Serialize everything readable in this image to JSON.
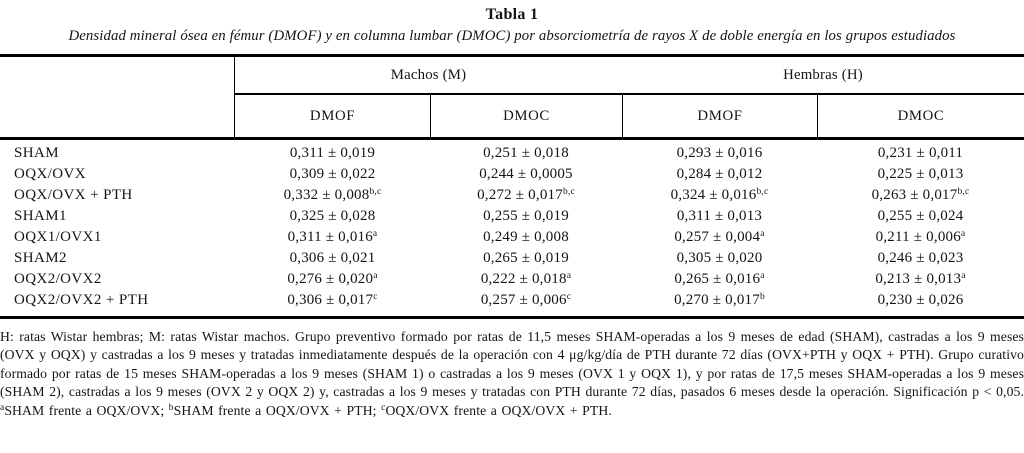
{
  "title": "Tabla 1",
  "subtitle": "Densidad mineral ósea en fémur (DMOF) y en columna lumbar (DMOC) por absorciometría de rayos X de doble energía en los grupos estudiados",
  "table": {
    "group_headers": [
      {
        "label": "Machos (M)"
      },
      {
        "label": "Hembras (H)"
      }
    ],
    "col_headers": [
      "DMOF",
      "DMOC",
      "DMOF",
      "DMOC"
    ],
    "rows": [
      {
        "label": "SHAM",
        "cells": [
          {
            "text": "0,311 ± 0,019",
            "sup": ""
          },
          {
            "text": "0,251 ± 0,018",
            "sup": ""
          },
          {
            "text": "0,293 ± 0,016",
            "sup": ""
          },
          {
            "text": "0,231 ± 0,011",
            "sup": ""
          }
        ]
      },
      {
        "label": "OQX/OVX",
        "cells": [
          {
            "text": "0,309 ± 0,022",
            "sup": ""
          },
          {
            "text": "0,244 ± 0,0005",
            "sup": ""
          },
          {
            "text": "0,284 ± 0,012",
            "sup": ""
          },
          {
            "text": "0,225 ± 0,013",
            "sup": ""
          }
        ]
      },
      {
        "label": "OQX/OVX + PTH",
        "cells": [
          {
            "text": "0,332 ± 0,008",
            "sup": "b,c"
          },
          {
            "text": "0,272 ± 0,017",
            "sup": "b,c"
          },
          {
            "text": "0,324 ± 0,016",
            "sup": "b,c"
          },
          {
            "text": "0,263 ± 0,017",
            "sup": "b,c"
          }
        ]
      },
      {
        "label": "SHAM1",
        "cells": [
          {
            "text": "0,325 ± 0,028",
            "sup": ""
          },
          {
            "text": "0,255 ± 0,019",
            "sup": ""
          },
          {
            "text": "0,311 ± 0,013",
            "sup": ""
          },
          {
            "text": "0,255 ± 0,024",
            "sup": ""
          }
        ]
      },
      {
        "label": "OQX1/OVX1",
        "cells": [
          {
            "text": "0,311 ± 0,016",
            "sup": "a"
          },
          {
            "text": "0,249 ± 0,008",
            "sup": ""
          },
          {
            "text": "0,257 ± 0,004",
            "sup": "a"
          },
          {
            "text": "0,211 ± 0,006",
            "sup": "a"
          }
        ]
      },
      {
        "label": "SHAM2",
        "cells": [
          {
            "text": "0,306 ± 0,021",
            "sup": ""
          },
          {
            "text": "0,265 ± 0,019",
            "sup": ""
          },
          {
            "text": "0,305 ± 0,020",
            "sup": ""
          },
          {
            "text": "0,246 ± 0,023",
            "sup": ""
          }
        ]
      },
      {
        "label": "OQX2/OVX2",
        "cells": [
          {
            "text": "0,276 ± 0,020",
            "sup": "a"
          },
          {
            "text": "0,222 ± 0,018",
            "sup": "a"
          },
          {
            "text": "0,265 ± 0,016",
            "sup": "a"
          },
          {
            "text": "0,213 ± 0,013",
            "sup": "a"
          }
        ]
      },
      {
        "label": "OQX2/OVX2 + PTH",
        "cells": [
          {
            "text": "0,306 ± 0,017",
            "sup": "c"
          },
          {
            "text": "0,257 ± 0,006",
            "sup": "c"
          },
          {
            "text": "0,270 ± 0,017",
            "sup": "b"
          },
          {
            "text": "0,230 ± 0,026",
            "sup": ""
          }
        ]
      }
    ]
  },
  "footnote": {
    "segments": [
      {
        "sup": "",
        "text": "H: ratas Wistar hembras; M: ratas Wistar machos. Grupo preventivo formado por ratas de 11,5 meses SHAM-operadas a los 9 meses de edad (SHAM), castradas a los 9 meses (OVX y OQX) y castradas a los 9 meses y tratadas inmediatamente después de la operación con 4 μg/kg/día de PTH durante 72 días (OVX+PTH y OQX + PTH). Grupo curativo formado por ratas de 15 meses SHAM-operadas a los 9 meses (SHAM 1) o castradas a los 9 meses (OVX 1 y OQX 1), y por ratas de 17,5 meses SHAM-operadas a los 9 meses (SHAM 2), castradas a los 9 meses (OVX 2 y OQX 2) y, castradas a los 9 meses y tratadas con PTH durante 72 días, pasados 6 meses desde la operación. Significación p < 0,05. "
      },
      {
        "sup": "a",
        "text": "SHAM frente a OQX/OVX; "
      },
      {
        "sup": "b",
        "text": "SHAM frente a OQX/OVX + PTH; "
      },
      {
        "sup": "c",
        "text": "OQX/OVX frente a OQX/OVX + PTH."
      }
    ]
  }
}
